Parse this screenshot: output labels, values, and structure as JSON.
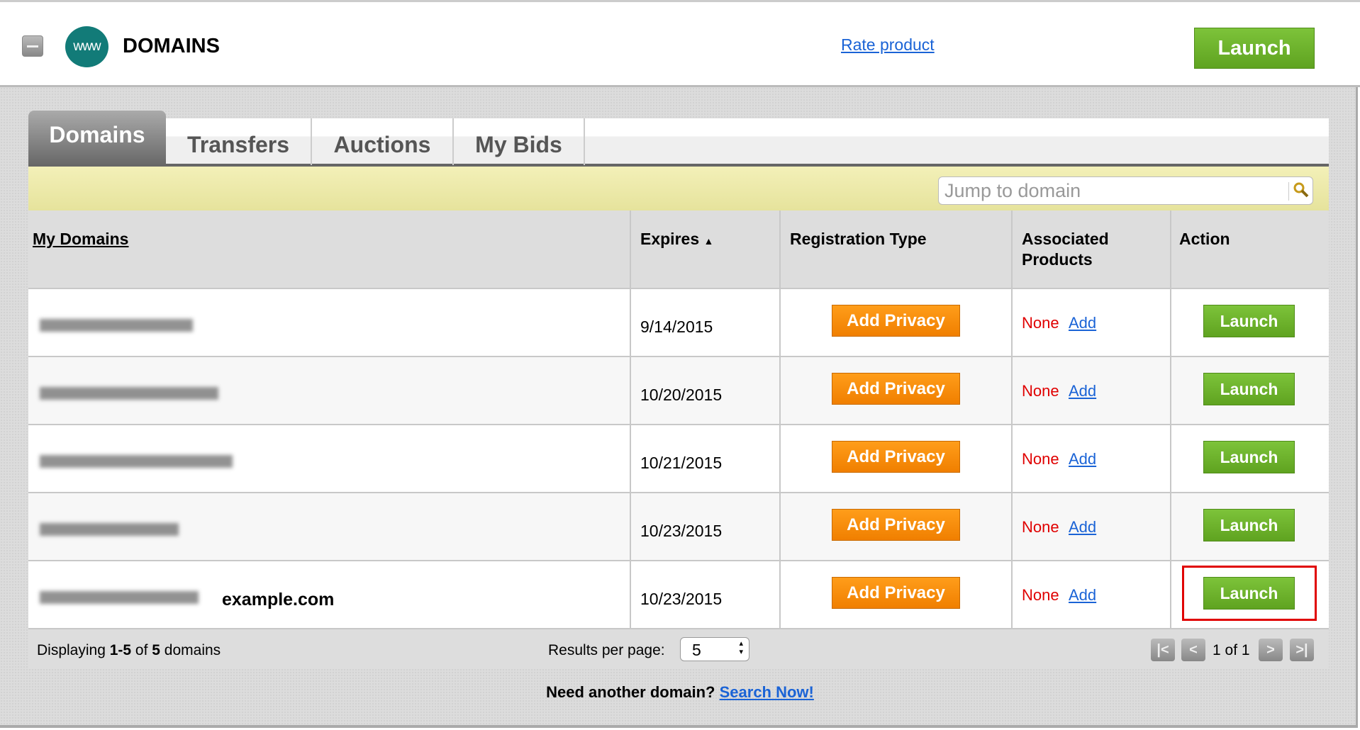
{
  "header": {
    "title": "DOMAINS",
    "logo_text": "www",
    "rate_link": "Rate product",
    "launch": "Launch"
  },
  "tabs": [
    {
      "label": "Domains",
      "active": true
    },
    {
      "label": "Transfers"
    },
    {
      "label": "Auctions"
    },
    {
      "label": "My Bids"
    }
  ],
  "search": {
    "placeholder": "Jump to domain"
  },
  "table": {
    "headers": {
      "domain": "My Domains",
      "expires": "Expires",
      "sort_indicator": "▲",
      "regtype": "Registration Type",
      "assoc1": "Associated",
      "assoc2": "Products",
      "action": "Action"
    },
    "rows": [
      {
        "domain_label": "",
        "expires": "9/14/2015",
        "privacy": "Add Privacy",
        "products": "None",
        "add": "Add",
        "action": "Launch"
      },
      {
        "domain_label": "",
        "expires": "10/20/2015",
        "privacy": "Add Privacy",
        "products": "None",
        "add": "Add",
        "action": "Launch"
      },
      {
        "domain_label": "",
        "expires": "10/21/2015",
        "privacy": "Add Privacy",
        "products": "None",
        "add": "Add",
        "action": "Launch"
      },
      {
        "domain_label": "",
        "expires": "10/23/2015",
        "privacy": "Add Privacy",
        "products": "None",
        "add": "Add",
        "action": "Launch"
      },
      {
        "domain_label": "example.com",
        "expires": "10/23/2015",
        "privacy": "Add Privacy",
        "products": "None",
        "add": "Add",
        "action": "Launch",
        "highlighted": true
      }
    ]
  },
  "footer": {
    "displaying_prefix": "Displaying ",
    "range": "1-5",
    "of": " of ",
    "total": "5",
    "suffix": " domains",
    "results_label": "Results per page:",
    "per_page": "5",
    "page_text": "1 of 1"
  },
  "bottom": {
    "text": "Need another domain? ",
    "link": "Search Now!"
  },
  "colors": {
    "launch_green": "#6bb22a",
    "privacy_orange": "#f58a00",
    "none_red": "#e00000",
    "link_blue": "#1a63d6",
    "highlight_red": "#e00000"
  }
}
